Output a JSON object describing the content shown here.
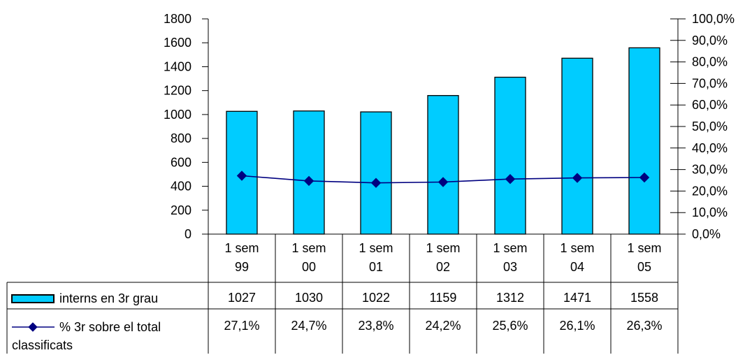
{
  "chart_data": {
    "type": "bar",
    "categories": [
      [
        "1 sem",
        "99"
      ],
      [
        "1 sem",
        "00"
      ],
      [
        "1 sem",
        "01"
      ],
      [
        "1 sem",
        "02"
      ],
      [
        "1 sem",
        "03"
      ],
      [
        "1 sem",
        "04"
      ],
      [
        "1 sem",
        "05"
      ]
    ],
    "series": [
      {
        "name": "interns en 3r grau",
        "type": "bar",
        "axis": "left",
        "color": "#00CCFF",
        "values": [
          1027,
          1030,
          1022,
          1159,
          1312,
          1471,
          1558
        ],
        "labels": [
          "1027",
          "1030",
          "1022",
          "1159",
          "1312",
          "1471",
          "1558"
        ]
      },
      {
        "name": [
          "% 3r sobre el total",
          "classificats"
        ],
        "type": "line",
        "axis": "right",
        "color": "#000080",
        "values": [
          27.1,
          24.7,
          23.8,
          24.2,
          25.6,
          26.1,
          26.3
        ],
        "labels": [
          "27,1%",
          "24,7%",
          "23,8%",
          "24,2%",
          "25,6%",
          "26,1%",
          "26,3%"
        ]
      }
    ],
    "y_left": {
      "ylim": [
        0,
        1800
      ],
      "ticks": [
        "0",
        "200",
        "400",
        "600",
        "800",
        "1000",
        "1200",
        "1400",
        "1600",
        "1800"
      ]
    },
    "y_right": {
      "ylim": [
        0,
        100
      ],
      "ticks": [
        "0,0%",
        "10,0%",
        "20,0%",
        "30,0%",
        "40,0%",
        "50,0%",
        "60,0%",
        "70,0%",
        "80,0%",
        "90,0%",
        "100,0%"
      ]
    },
    "data_table": true,
    "grid": false
  }
}
